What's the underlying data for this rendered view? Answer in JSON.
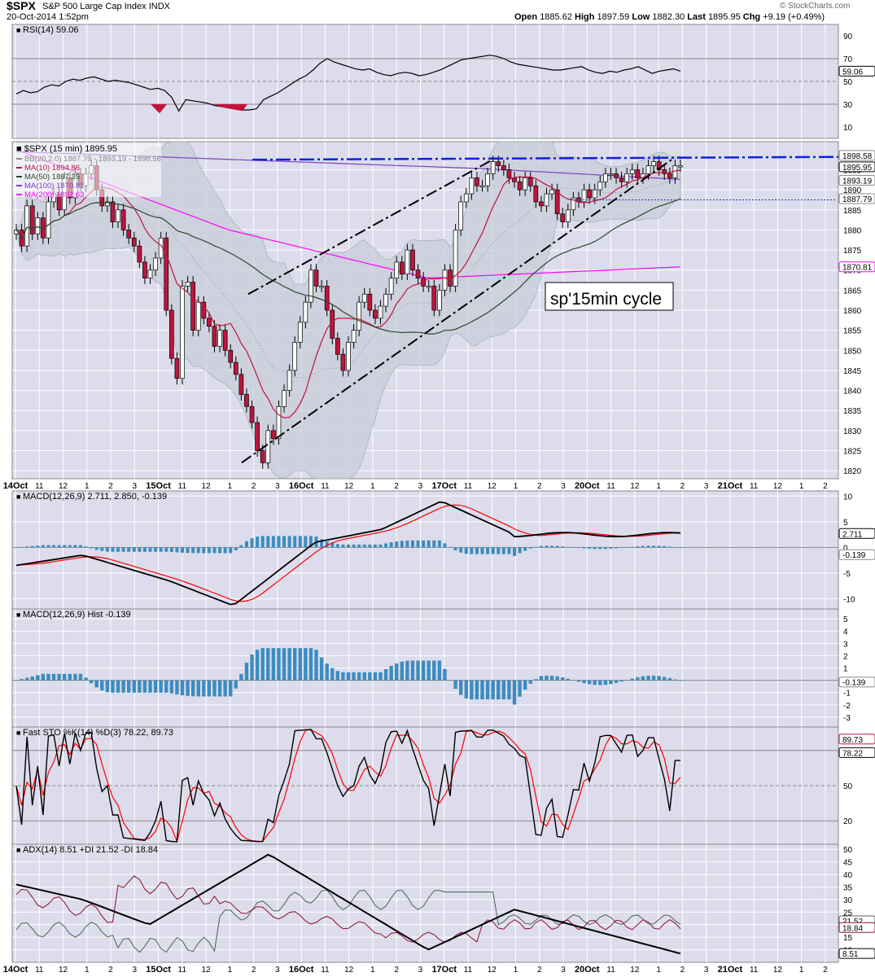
{
  "header": {
    "symbol": "$SPX",
    "name": "S&P 500 Large Cap Index",
    "exchange": "INDX",
    "datetime": "20-Oct-2014 1:52pm",
    "open_label": "Open",
    "open": "1885.62",
    "high_label": "High",
    "high": "1897.59",
    "low_label": "Low",
    "low": "1882.30",
    "last_label": "Last",
    "last": "1895.95",
    "chg_label": "Chg",
    "chg": "+9.19 (+0.49%)",
    "watermark": "© StockCharts.com"
  },
  "colors": {
    "panel_bg": "#dcdcec",
    "grid": "#ffffff",
    "up_candle": "#ffffff",
    "down_candle": "#c0143c",
    "bb_band": "#c8ccd8",
    "ma10": "#c0143c",
    "ma50": "#2a4a2a",
    "ma100": "#8040c0",
    "ma200": "#ff00ff",
    "macd_line": "#000000",
    "signal_line": "#ff0000",
    "hist_bar": "#3c8cc0",
    "trendline_blue": "#1020e0",
    "rsi_line": "#000000"
  },
  "x_labels": [
    "14Oct",
    "11",
    "12",
    "1",
    "2",
    "3",
    "15Oct",
    "11",
    "12",
    "1",
    "2",
    "3",
    "16Oct",
    "11",
    "12",
    "1",
    "2",
    "3",
    "17Oct",
    "11",
    "12",
    "1",
    "2",
    "3",
    "20Oct",
    "11",
    "12",
    "1",
    "2",
    "3",
    "21Oct",
    "11",
    "12",
    "1",
    "2"
  ],
  "rsi_panel": {
    "label": "RSI(14) 59.06",
    "ticks": [
      "90",
      "70",
      "50",
      "30",
      "10"
    ],
    "current_tag": "59.06",
    "values": [
      39,
      42,
      40,
      41,
      45,
      47,
      46,
      50,
      52,
      51,
      53,
      54,
      52,
      50,
      51,
      50,
      49,
      47,
      45,
      43,
      44,
      42,
      36,
      24,
      34,
      33,
      32,
      31,
      29,
      28,
      27,
      26,
      25,
      25,
      26,
      34,
      37,
      40,
      44,
      48,
      52,
      55,
      60,
      66,
      70,
      67,
      65,
      63,
      61,
      60,
      61,
      58,
      56,
      55,
      57,
      58,
      57,
      55,
      56,
      58,
      60,
      63,
      66,
      69,
      70,
      71,
      72,
      73,
      72,
      70,
      67,
      65,
      64,
      63,
      62,
      61,
      60,
      60,
      61,
      62,
      63,
      60,
      58,
      57,
      59,
      58,
      60,
      61,
      63,
      60,
      57,
      59,
      60,
      61,
      59
    ]
  },
  "price_panel": {
    "label": "$SPX (15 min) 1895.95",
    "legend": [
      {
        "text": "BB(20,2.0) 1887.79 - 1893.19 - 1898.58",
        "color": "#888888"
      },
      {
        "text": "MA(10) 1894.86",
        "color": "#c0143c"
      },
      {
        "text": "MA(50) 1887.35",
        "color": "#2a4a2a"
      },
      {
        "text": "MA(100) 1870.81",
        "color": "#8040c0"
      },
      {
        "text": "MA(200) 1892.63",
        "color": "#ff00ff"
      }
    ],
    "ticks": [
      "1895",
      "1890",
      "1885",
      "1880",
      "1875",
      "1870",
      "1865",
      "1860",
      "1855",
      "1850",
      "1845",
      "1840",
      "1835",
      "1830",
      "1825",
      "1820"
    ],
    "tags": [
      {
        "text": "1898.58",
        "value": 1898.58,
        "fill": "#ffffff",
        "stroke": "#888888"
      },
      {
        "text": "1895.95",
        "value": 1895.95,
        "fill": "#ffffff",
        "stroke": "#000000"
      },
      {
        "text": "1893.19",
        "value": 1893.19,
        "fill": "#ffffff",
        "stroke": "#888888"
      },
      {
        "text": "1887.79",
        "value": 1887.79,
        "fill": "#ffffff",
        "stroke": "#888888"
      },
      {
        "text": "1870.81",
        "value": 1870.81,
        "fill": "#ffffff",
        "stroke": "#ff00ff"
      }
    ],
    "annotation": "sp'15min cycle"
  },
  "macd_panel": {
    "label": "MACD(12,26,9) 2.711, 2.850, -0.139",
    "ticks": [
      "10",
      "5",
      "0",
      "-5",
      "-10"
    ],
    "tags": [
      "2.711",
      "-0.139"
    ]
  },
  "hist_panel": {
    "label": "MACD(12,26,9) Hist -0.139",
    "ticks": [
      "5",
      "4",
      "3",
      "2",
      "1",
      "-1",
      "-2",
      "-3"
    ],
    "tag": "-0.139"
  },
  "sto_panel": {
    "label": "Fast STO %K(14) %D(3) 78.22, 89.73",
    "ticks": [
      "80",
      "50",
      "20"
    ],
    "tags": [
      "89.73",
      "78.22"
    ]
  },
  "adx_panel": {
    "label": "ADX(14) 8.51 +DI 21.52 -DI 18.84",
    "ticks": [
      "50",
      "45",
      "40",
      "35",
      "30",
      "25",
      "20",
      "15",
      "10"
    ],
    "tags": [
      "21.52",
      "18.84",
      "8.51"
    ]
  },
  "chart_data": {
    "type": "line",
    "title": "$SPX (15 min)",
    "x_session_labels": [
      "14Oct",
      "15Oct",
      "16Oct",
      "17Oct",
      "20Oct",
      "21Oct"
    ],
    "ylim": [
      1818,
      1902
    ],
    "candles_close": [
      1880,
      1876,
      1886,
      1879,
      1883,
      1878,
      1887,
      1889,
      1885,
      1893,
      1888,
      1894,
      1891,
      1894,
      1896,
      1890,
      1886,
      1887,
      1882,
      1885,
      1880,
      1878,
      1876,
      1872,
      1868,
      1870,
      1873,
      1878,
      1860,
      1848,
      1843,
      1866,
      1867,
      1855,
      1862,
      1858,
      1856,
      1851,
      1855,
      1850,
      1847,
      1844,
      1839,
      1836,
      1832,
      1825,
      1822,
      1830,
      1828,
      1836,
      1840,
      1845,
      1852,
      1857,
      1862,
      1870,
      1866,
      1866,
      1860,
      1853,
      1849,
      1845,
      1852,
      1855,
      1862,
      1864,
      1860,
      1858,
      1861,
      1864,
      1868,
      1872,
      1869,
      1875,
      1870,
      1868,
      1866,
      1866,
      1860,
      1865,
      1870,
      1866,
      1880,
      1887,
      1889,
      1893,
      1891,
      1891,
      1894,
      1897,
      1896,
      1895,
      1893,
      1892,
      1890,
      1893,
      1891,
      1887,
      1886,
      1889,
      1890,
      1884,
      1882,
      1885,
      1888,
      1887,
      1890,
      1888,
      1890,
      1892,
      1894,
      1894,
      1893,
      1892,
      1894,
      1895,
      1893,
      1894,
      1896,
      1897,
      1895,
      1894,
      1893,
      1896,
      1896
    ],
    "bb_upper": 1898.58,
    "bb_middle": 1893.19,
    "bb_lower": 1887.79,
    "ma10": 1894.86,
    "ma50": 1887.35,
    "ma100": 1870.81,
    "ma200": 1892.63,
    "resistance_level": 1897.5,
    "support_level": 1887.5,
    "macd": {
      "macd": 2.711,
      "signal": 2.85,
      "hist": -0.139,
      "ylim": [
        -12,
        11
      ]
    },
    "stochastic": {
      "k": 78.22,
      "d": 89.73,
      "ylim": [
        0,
        100
      ]
    },
    "adx": {
      "adx": 8.51,
      "plus_di": 21.52,
      "minus_di": 18.84,
      "ylim": [
        5,
        52
      ]
    },
    "rsi": {
      "value": 59.06,
      "ylim": [
        0,
        100
      ]
    }
  }
}
